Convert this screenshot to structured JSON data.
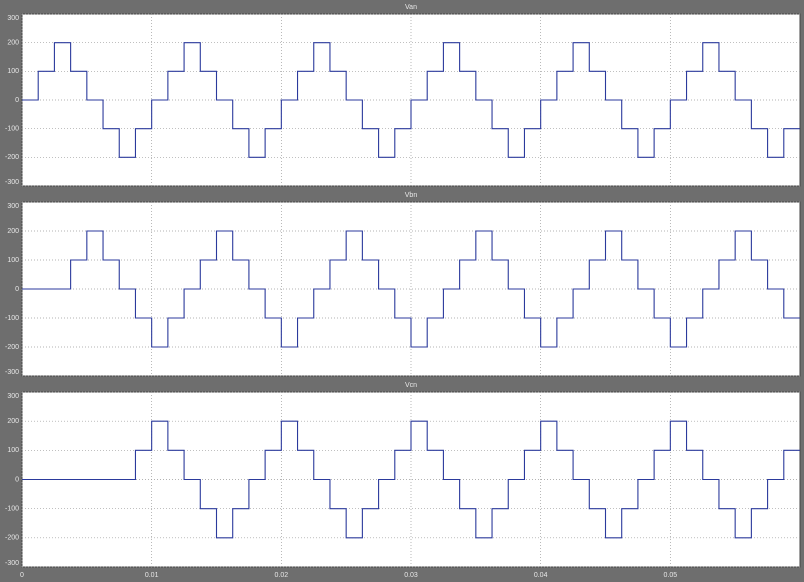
{
  "chart_data": [
    {
      "type": "line",
      "title": "Van",
      "drawstyle": "steps-post",
      "color": "#2b3a9c",
      "grid": true,
      "xlim": [
        0,
        0.06
      ],
      "xticks": [
        0,
        0.01,
        0.02,
        0.03,
        0.04,
        0.05
      ],
      "ylim": [
        -300,
        300
      ],
      "yticks": [
        300,
        200,
        100,
        0,
        -100,
        -200,
        -300
      ],
      "x": [
        0,
        0.00125,
        0.0025,
        0.00375,
        0.005,
        0.00625,
        0.0075,
        0.00875,
        0.01,
        0.01125,
        0.0125,
        0.01375,
        0.015,
        0.01625,
        0.0175,
        0.01875,
        0.02,
        0.02125,
        0.0225,
        0.02375,
        0.025,
        0.02625,
        0.0275,
        0.02875,
        0.03,
        0.03125,
        0.0325,
        0.03375,
        0.035,
        0.03625,
        0.0375,
        0.03875,
        0.04,
        0.04125,
        0.0425,
        0.04375,
        0.045,
        0.04625,
        0.0475,
        0.04875,
        0.05,
        0.05125,
        0.0525,
        0.05375,
        0.055,
        0.05625,
        0.0575,
        0.05875
      ],
      "values": [
        0,
        100,
        200,
        100,
        0,
        -100,
        -200,
        -100,
        0,
        100,
        200,
        100,
        0,
        -100,
        -200,
        -100,
        0,
        100,
        200,
        100,
        0,
        -100,
        -200,
        -100,
        0,
        100,
        200,
        100,
        0,
        -100,
        -200,
        -100,
        0,
        100,
        200,
        100,
        0,
        -100,
        -200,
        -100,
        0,
        100,
        200,
        100,
        0,
        -100,
        -200,
        -100
      ]
    },
    {
      "type": "line",
      "title": "Vbn",
      "drawstyle": "steps-post",
      "color": "#2b3a9c",
      "grid": true,
      "xlim": [
        0,
        0.06
      ],
      "xticks": [
        0,
        0.01,
        0.02,
        0.03,
        0.04,
        0.05
      ],
      "ylim": [
        -300,
        300
      ],
      "yticks": [
        300,
        200,
        100,
        0,
        -100,
        -200,
        -300
      ],
      "x": [
        0,
        0.00375,
        0.005,
        0.00625,
        0.0075,
        0.00875,
        0.01,
        0.01125,
        0.0125,
        0.01375,
        0.015,
        0.01625,
        0.0175,
        0.01875,
        0.02,
        0.02125,
        0.0225,
        0.02375,
        0.025,
        0.02625,
        0.0275,
        0.02875,
        0.03,
        0.03125,
        0.0325,
        0.03375,
        0.035,
        0.03625,
        0.0375,
        0.03875,
        0.04,
        0.04125,
        0.0425,
        0.04375,
        0.045,
        0.04625,
        0.0475,
        0.04875,
        0.05,
        0.05125,
        0.0525,
        0.05375,
        0.055,
        0.05625,
        0.0575,
        0.05875
      ],
      "values": [
        0,
        100,
        200,
        100,
        0,
        -100,
        -200,
        -100,
        0,
        100,
        200,
        100,
        0,
        -100,
        -200,
        -100,
        0,
        100,
        200,
        100,
        0,
        -100,
        -200,
        -100,
        0,
        100,
        200,
        100,
        0,
        -100,
        -200,
        -100,
        0,
        100,
        200,
        100,
        0,
        -100,
        -200,
        -100,
        0,
        100,
        200,
        100,
        0,
        -100
      ]
    },
    {
      "type": "line",
      "title": "Vcn",
      "drawstyle": "steps-post",
      "color": "#2b3a9c",
      "grid": true,
      "xlim": [
        0,
        0.06
      ],
      "xticks": [
        0,
        0.01,
        0.02,
        0.03,
        0.04,
        0.05
      ],
      "ylim": [
        -300,
        300
      ],
      "yticks": [
        300,
        200,
        100,
        0,
        -100,
        -200,
        -300
      ],
      "x": [
        0,
        0.00875,
        0.01,
        0.01125,
        0.0125,
        0.01375,
        0.015,
        0.01625,
        0.0175,
        0.01875,
        0.02,
        0.02125,
        0.0225,
        0.02375,
        0.025,
        0.02625,
        0.0275,
        0.02875,
        0.03,
        0.03125,
        0.0325,
        0.03375,
        0.035,
        0.03625,
        0.0375,
        0.03875,
        0.04,
        0.04125,
        0.0425,
        0.04375,
        0.045,
        0.04625,
        0.0475,
        0.04875,
        0.05,
        0.05125,
        0.0525,
        0.05375,
        0.055,
        0.05625,
        0.0575,
        0.05875
      ],
      "values": [
        0,
        100,
        200,
        100,
        0,
        -100,
        -200,
        -100,
        0,
        100,
        200,
        100,
        0,
        -100,
        -200,
        -100,
        0,
        100,
        200,
        100,
        0,
        -100,
        -200,
        -100,
        0,
        100,
        200,
        100,
        0,
        -100,
        -200,
        -100,
        0,
        100,
        200,
        100,
        0,
        -100,
        -200,
        -100,
        0,
        100
      ]
    }
  ]
}
